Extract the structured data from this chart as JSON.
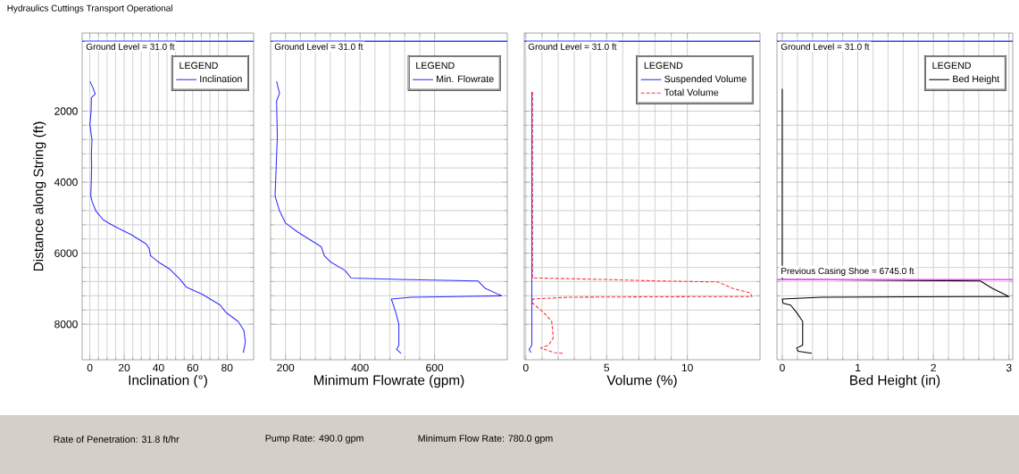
{
  "chart_data": [
    {
      "type": "line",
      "title": "Hydraulics Cuttings Transport Operational",
      "xlabel": "Inclination (°)",
      "ylabel": "Distance along String (ft)",
      "legend_title": "LEGEND",
      "legend": "top right",
      "grid": true,
      "xlim": [
        -4.5,
        95.5
      ],
      "xticks": [
        0,
        20,
        40,
        60,
        80
      ],
      "ylim": [
        9000,
        -200
      ],
      "yticks": [
        2000,
        4000,
        6000,
        8000
      ],
      "ref_lines": [
        {
          "axis": "y",
          "value": 31,
          "label": "Ground Level = 31.0 ft",
          "color": "#2f3fff"
        }
      ],
      "annotations": [
        "Rate of Penetration: 31.8 ft/hr",
        "Pump Rate: 490.0 gpm",
        "Minimum Flow Rate: 780.0 gpm"
      ],
      "series": [
        {
          "name": "Inclination",
          "color": "#3030ff",
          "x": [
            0,
            1.7,
            3.1,
            0.9,
            0.7,
            0,
            1.2,
            0.9,
            1.0,
            0.9,
            0.5,
            1.4,
            3.5,
            7.8,
            13.8,
            24.2,
            32.8,
            34.5,
            35.4,
            39.7,
            46.6,
            52.7,
            56.1,
            65.6,
            76.0,
            79.4,
            86.4,
            89.8,
            90.7,
            89.5
          ],
          "values": [
            1160,
            1330,
            1520,
            1620,
            2000,
            2380,
            2800,
            3220,
            3550,
            3890,
            4390,
            4560,
            4810,
            5060,
            5230,
            5480,
            5740,
            5860,
            6070,
            6240,
            6450,
            6740,
            6950,
            7160,
            7460,
            7670,
            7920,
            8170,
            8500,
            8800
          ]
        }
      ]
    },
    {
      "type": "line",
      "xlabel": "Minimum Flowrate (gpm)",
      "legend_title": "LEGEND",
      "legend": "top right",
      "grid": true,
      "tick_labels": "x",
      "xlim": [
        160,
        795
      ],
      "xticks": [
        200,
        400,
        600
      ],
      "ylim": [
        9000,
        -200
      ],
      "yticks": [
        2000,
        4000,
        6000,
        8000
      ],
      "ref_lines": [
        {
          "axis": "y",
          "value": 31,
          "label": "Ground Level = 31.0 ft",
          "color": "#2f3fff"
        }
      ],
      "series": [
        {
          "name": "Min. Flowrate",
          "color": "#3030ff",
          "x": [
            176,
            184,
            176,
            178,
            172,
            184,
            200,
            232,
            296,
            304,
            320,
            360,
            376,
            504,
            716,
            736,
            780,
            536,
            484,
            496,
            504,
            504,
            498,
            510
          ],
          "values": [
            1160,
            1500,
            1710,
            2710,
            4390,
            4810,
            5150,
            5400,
            5820,
            6070,
            6240,
            6490,
            6700,
            6740,
            6780,
            6990,
            7200,
            7240,
            7290,
            7670,
            8000,
            8590,
            8710,
            8820
          ]
        }
      ]
    },
    {
      "type": "line",
      "xlabel": "Volume (%)",
      "legend_title": "LEGEND",
      "legend": "top right",
      "grid": true,
      "tick_labels": "x",
      "xlim": [
        -0.1,
        14.5
      ],
      "xticks": [
        0,
        5,
        10
      ],
      "ylim": [
        9000,
        -200
      ],
      "yticks": [
        2000,
        4000,
        6000,
        8000
      ],
      "ref_lines": [
        {
          "axis": "y",
          "value": 31,
          "label": "Ground Level = 31.0 ft",
          "color": "#2f3fff"
        }
      ],
      "series": [
        {
          "name": "Suspended Volume",
          "color": "#3030ff",
          "line_style": "solid",
          "x": [
            0.37,
            0.37,
            0.2,
            0.32
          ],
          "values": [
            1460,
            8590,
            8710,
            8800
          ]
        },
        {
          "name": "Total Volume",
          "color": "#ff3030",
          "line_style": "dashed",
          "x": [
            0.41,
            0.41,
            0.83,
            4.9,
            8.0,
            11.9,
            12.8,
            13.9,
            14.0,
            11.9,
            2.7,
            0.42,
            0.42,
            1.1,
            1.6,
            1.7,
            1.4,
            0.92,
            1.75,
            2.4
          ],
          "values": [
            1460,
            6700,
            6700,
            6740,
            6780,
            6810,
            6990,
            7120,
            7220,
            7220,
            7240,
            7290,
            7410,
            7670,
            7920,
            8380,
            8590,
            8670,
            8800,
            8820
          ]
        }
      ]
    },
    {
      "type": "line",
      "xlabel": "Bed Height (in)",
      "legend_title": "LEGEND",
      "legend": "top right",
      "grid": true,
      "tick_labels": "x",
      "xlim": [
        -0.07,
        3.05
      ],
      "xticks": [
        0,
        1,
        2,
        3
      ],
      "ylim": [
        9000,
        -200
      ],
      "yticks": [
        2000,
        4000,
        6000,
        8000
      ],
      "ref_lines": [
        {
          "axis": "y",
          "value": 31,
          "label": "Ground Level = 31.0 ft",
          "color": "#2f3fff"
        },
        {
          "axis": "y",
          "value": 6745,
          "label": "Previous Casing Shoe = 6745.0 ft",
          "color": "#ff40ff"
        }
      ],
      "series": [
        {
          "name": "Bed Height",
          "color": "#000000",
          "x": [
            0,
            0,
            2.62,
            2.78,
            3.0,
            2.5,
            0.51,
            0,
            0.01,
            0.11,
            0.19,
            0.27,
            0.27,
            0.19,
            0.21,
            0.39
          ],
          "values": [
            1370,
            6740,
            6780,
            6990,
            7220,
            7220,
            7240,
            7290,
            7410,
            7460,
            7670,
            7920,
            8590,
            8670,
            8760,
            8820
          ]
        }
      ]
    }
  ]
}
